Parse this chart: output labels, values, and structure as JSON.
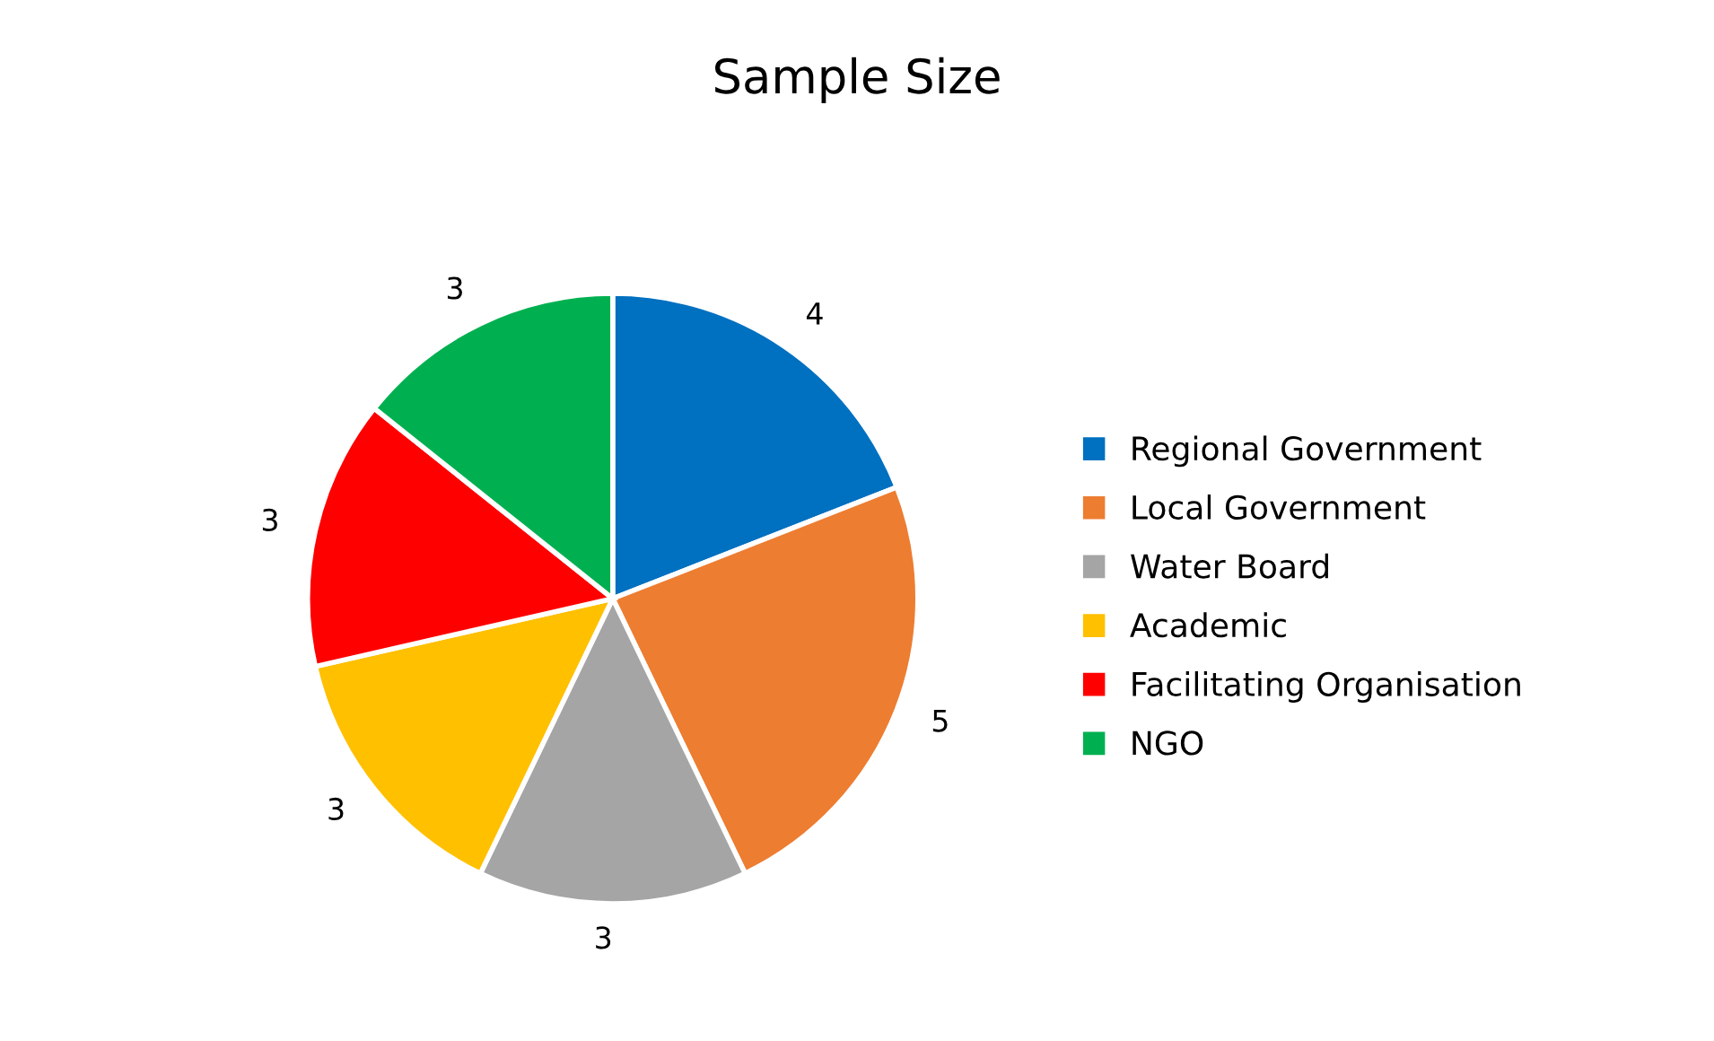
{
  "chart_data": {
    "type": "pie",
    "title": "Sample Size",
    "categories": [
      "Regional Government",
      "Local Government",
      "Water Board",
      "Academic",
      "Facilitating Organisation",
      "NGO"
    ],
    "values": [
      4,
      5,
      3,
      3,
      3,
      3
    ],
    "colors": [
      "#0070c0",
      "#ed7d31",
      "#a5a5a5",
      "#ffc000",
      "#ff0000",
      "#00b050"
    ],
    "data_labels": true,
    "legend": "right"
  }
}
